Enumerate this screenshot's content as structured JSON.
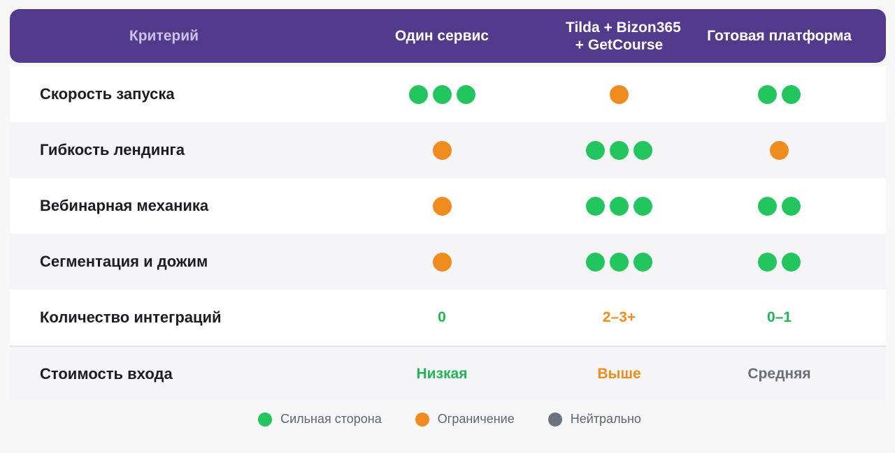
{
  "header": {
    "criterion": "Критерий",
    "col1": "Один сервис",
    "col2_line1": "Tilda + Bizon365",
    "col2_line2": "+ GetCourse",
    "col3": "Готовая платформа"
  },
  "rows": [
    {
      "label": "Скорость запуска",
      "col1": {
        "dots": 3,
        "color": "green"
      },
      "col2": {
        "dots": 1,
        "color": "orange"
      },
      "col3": {
        "dots": 2,
        "color": "green"
      }
    },
    {
      "label": "Гибкость лендинга",
      "col1": {
        "dots": 1,
        "color": "orange"
      },
      "col2": {
        "dots": 3,
        "color": "green"
      },
      "col3": {
        "dots": 1,
        "color": "orange"
      }
    },
    {
      "label": "Вебинарная механика",
      "col1": {
        "dots": 1,
        "color": "orange"
      },
      "col2": {
        "dots": 3,
        "color": "green"
      },
      "col3": {
        "dots": 2,
        "color": "green"
      }
    },
    {
      "label": "Сегментация и дожим",
      "col1": {
        "dots": 1,
        "color": "orange"
      },
      "col2": {
        "dots": 3,
        "color": "green"
      },
      "col3": {
        "dots": 2,
        "color": "green"
      }
    },
    {
      "label": "Количество интеграций",
      "col1": {
        "text": "0",
        "color": "green"
      },
      "col2": {
        "text": "2–3+",
        "color": "orange"
      },
      "col3": {
        "text": "0–1",
        "color": "green"
      }
    },
    {
      "label": "Стоимость входа",
      "col1": {
        "text": "Низкая",
        "color": "green"
      },
      "col2": {
        "text": "Выше",
        "color": "orange"
      },
      "col3": {
        "text": "Средняя",
        "color": "gray"
      }
    }
  ],
  "legend": [
    {
      "label": "Сильная сторона",
      "color": "green"
    },
    {
      "label": "Ограничение",
      "color": "orange"
    },
    {
      "label": "Нейтрально",
      "color": "gray"
    }
  ],
  "colors": {
    "green": "#22c55e",
    "orange": "#f08c1e",
    "gray": "#6b7280",
    "header": "#523a8c"
  }
}
